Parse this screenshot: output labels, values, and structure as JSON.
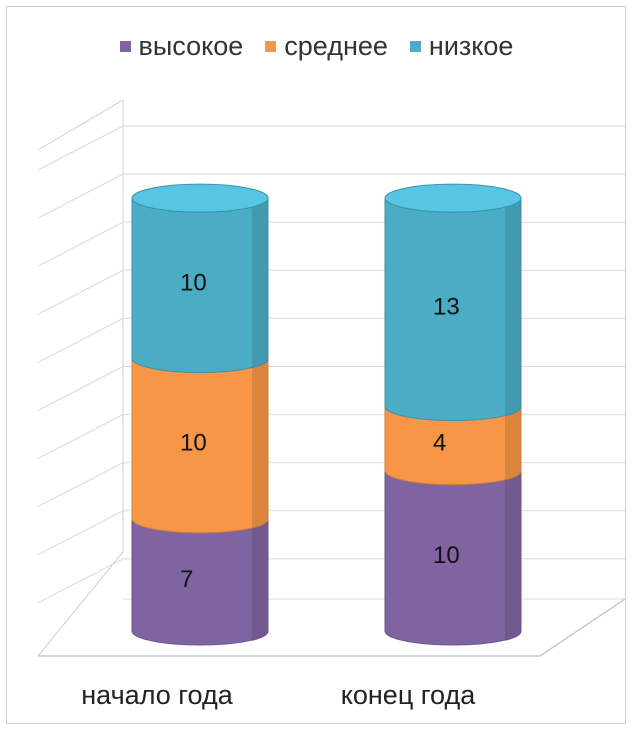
{
  "chart_data": {
    "type": "bar",
    "stacked": true,
    "style": "3d-cylinder",
    "categories": [
      "начало года",
      "конец года"
    ],
    "series": [
      {
        "name": "высокое",
        "color": "#8064a2",
        "values": [
          7,
          10
        ]
      },
      {
        "name": "среднее",
        "color": "#f79646",
        "values": [
          10,
          4
        ]
      },
      {
        "name": "низкое",
        "color": "#4bacc6",
        "values": [
          10,
          13
        ]
      }
    ],
    "title": "",
    "xlabel": "",
    "ylabel": "",
    "ylim": [
      0,
      30
    ],
    "grid": true,
    "legend_position": "top",
    "data_labels": true
  }
}
